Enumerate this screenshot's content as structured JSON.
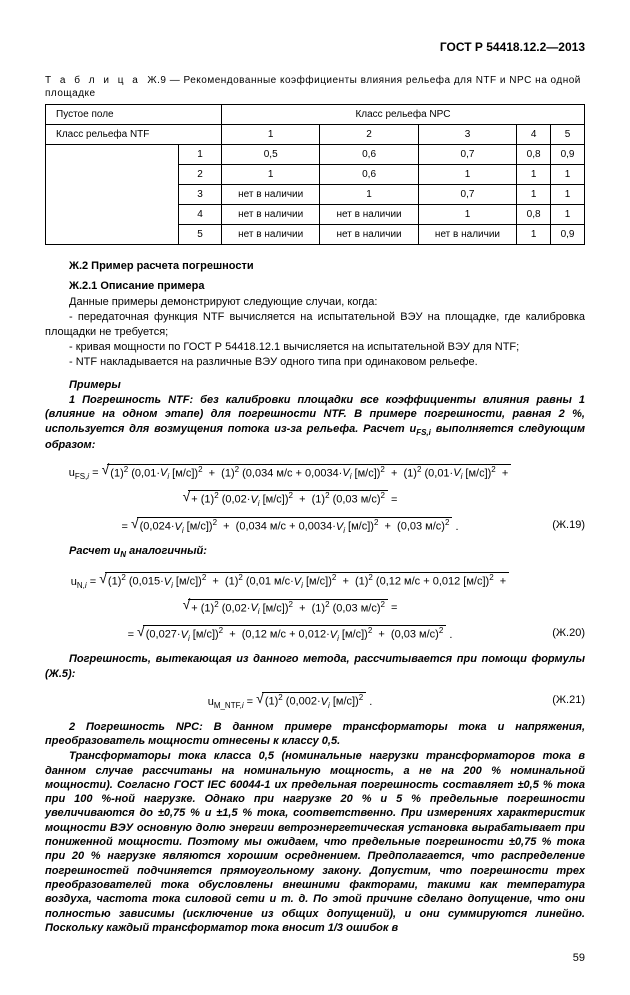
{
  "header": "ГОСТ Р 54418.12.2—2013",
  "tableCaptionPrefix": "Т а б л и ц а",
  "tableCaptionNum": "Ж.9",
  "tableCaptionText": "— Рекомендованные коэффициенты влияния рельефа для NTF и NPC на одной площадке",
  "table": {
    "col1_header": "Пустое поле",
    "col2_header": "Класс рельефа NPC",
    "row_label": "Класс рельефа NTF",
    "cols": [
      "1",
      "2",
      "3",
      "4",
      "5"
    ],
    "rows": [
      {
        "idx": "1",
        "cells": [
          "0,5",
          "0,6",
          "0,7",
          "0,8",
          "0,9"
        ]
      },
      {
        "idx": "2",
        "cells": [
          "1",
          "0,6",
          "1",
          "1",
          "1"
        ]
      },
      {
        "idx": "3",
        "cells": [
          "нет в наличии",
          "1",
          "0,7",
          "1",
          "1"
        ]
      },
      {
        "idx": "4",
        "cells": [
          "нет в наличии",
          "нет в наличии",
          "1",
          "0,8",
          "1"
        ]
      },
      {
        "idx": "5",
        "cells": [
          "нет в наличии",
          "нет в наличии",
          "нет в наличии",
          "1",
          "0,9"
        ]
      }
    ]
  },
  "sec_j2": "Ж.2 Пример расчета погрешности",
  "sec_j21": "Ж.2.1 Описание примера",
  "p1": "Данные примеры демонстрируют следующие случаи, когда:",
  "p2": "- передаточная функция NTF вычисляется на испытательной ВЭУ на площадке, где калибровка площадки не требуется;",
  "p3": "- кривая мощности по ГОСТ Р 54418.12.1 вычисляется на испытательной ВЭУ для NTF;",
  "p4": "- NTF накладывается на различные ВЭУ одного типа при одинаковом рельефе.",
  "primery": "Примеры",
  "ex1": "1 Погрешность NTF: без калибровки площадки все коэффициенты влияния равны 1 (влияние на одном этапе) для погрешности NTF. В примере погрешности, равная 2 %, используется для возмущения потока из-за рельефа. Расчет u",
  "ex1_sub": "FS,i",
  "ex1_tail": " выполняется следующим образом:",
  "f19a": "u<sub>FS,<i>i</i></sub> = <span class=\"radical\">√</span><span class=\"sqrt\">(1)<sup>2</sup> (0,01·<i>V<sub>i</sub></i> [м/с])<sup>2</sup> &nbsp;+&nbsp; (1)<sup>2</sup> (0,034 м/с + 0,0034·<i>V<sub>i</sub></i> [м/с])<sup>2</sup> &nbsp;+&nbsp; (1)<sup>2</sup> (0,01·<i>V<sub>i</sub></i> [м/с])<sup>2</sup> &nbsp;+</span>",
  "f19b": "<span class=\"radical\">√</span><span class=\"sqrt\">+ (1)<sup>2</sup> (0,02·<i>V<sub>i</sub></i> [м/с])<sup>2</sup> &nbsp;+&nbsp; (1)<sup>2</sup> (0,03 м/с)<sup>2</sup></span> =",
  "f19c": "= <span class=\"radical\">√</span><span class=\"sqrt\">(0,024·<i>V<sub>i</sub></i> [м/с])<sup>2</sup> &nbsp;+&nbsp; (0,034 м/с + 0,0034·<i>V<sub>i</sub></i> [м/с])<sup>2</sup> &nbsp;+&nbsp; (0,03 м/с)<sup>2</sup></span> .",
  "tag19": "(Ж.19)",
  "p_un": "Расчет u",
  "p_un_sub": "N",
  "p_un_tail": " аналогичный:",
  "f20a": "u<sub>N,<i>i</i></sub> = <span class=\"radical\">√</span><span class=\"sqrt\">(1)<sup>2</sup> (0,015·<i>V<sub>i</sub></i> [м/с])<sup>2</sup> &nbsp;+&nbsp; (1)<sup>2</sup> (0,01 м/с·<i>V<sub>i</sub></i> [м/с])<sup>2</sup> &nbsp;+&nbsp; (1)<sup>2</sup> (0,12 м/с + 0,012 [м/с])<sup>2</sup> &nbsp;+</span>",
  "f20b": "<span class=\"radical\">√</span><span class=\"sqrt\">+ (1)<sup>2</sup> (0,02·<i>V<sub>i</sub></i> [м/с])<sup>2</sup> &nbsp;+&nbsp; (1)<sup>2</sup> (0,03 м/с)<sup>2</sup></span> =",
  "f20c": "= <span class=\"radical\">√</span><span class=\"sqrt\">(0,027·<i>V<sub>i</sub></i> [м/с])<sup>2</sup> &nbsp;+&nbsp; (0,12 м/с + 0,012·<i>V<sub>i</sub></i> [м/с])<sup>2</sup> &nbsp;+&nbsp; (0,03 м/с)<sup>2</sup></span> .",
  "tag20": "(Ж.20)",
  "p_method": "Погрешность, вытекающая из данного метода, рассчитывается при помощи формулы (Ж.5):",
  "f21": "u<sub>M_NTF,<i>i</i></sub> = <span class=\"radical\">√</span><span class=\"sqrt\">(1)<sup>2</sup> (0,002·<i>V<sub>i</sub></i> [м/с])<sup>2</sup></span> .",
  "tag21": "(Ж.21)",
  "ex2_lead": "2 Погрешность NPC: В данном примере трансформаторы тока и напряжения, преобразователь мощности отнесены к классу 0,5.",
  "ex2_body": "Трансформаторы тока класса 0,5 (номинальные нагрузки трансформаторов тока в данном случае рассчитаны на номинальную мощность, а не на 200 % номинальной мощности). Согласно ГОСТ IEC 60044-1 их предельная погрешность составляет ±0,5 % тока при 100 %-ной нагрузке. Однако при нагрузке 20 % и 5 % предельные погрешности увеличиваются до ±0,75 % и ±1,5 % тока, соответственно. При измерениях характеристик мощности ВЭУ основную долю энергии ветроэнергетическая установка вырабатывает при пониженной мощности. Поэтому мы ожидаем, что предельные погрешности ±0,75 % тока при 20 % нагрузке являются хорошим осреднением. Предполагается, что распределение погрешностей подчиняется прямоугольному закону. Допустим, что погрешности трех преобразователей тока обусловлены внешними факторами, такими как температура воздуха, частота тока силовой сети и т. д. По этой причине сделано допущение, что они полностью зависимы (исключение из общих допущений), и они суммируются линейно. Поскольку каждый трансформатор тока вносит 1/3 ошибок в",
  "pagenum": "59"
}
